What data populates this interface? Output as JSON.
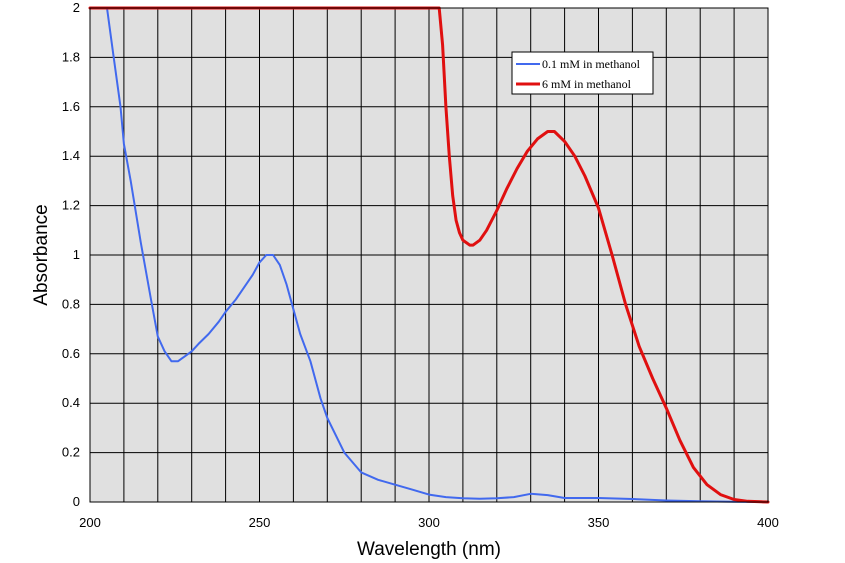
{
  "chart_data": {
    "type": "line",
    "title": "",
    "xlabel": "Wavelength (nm)",
    "ylabel": "Absorbance",
    "xlim": [
      200,
      400
    ],
    "ylim": [
      0,
      2
    ],
    "x_ticks": [
      200,
      250,
      300,
      350,
      400
    ],
    "x_tick_labels": [
      "200",
      "250",
      "300",
      "350",
      "400"
    ],
    "y_ticks": [
      0,
      0.2,
      0.4,
      0.6,
      0.8,
      1,
      1.2,
      1.4,
      1.6,
      1.8,
      2
    ],
    "y_tick_labels": [
      "0",
      "0.2",
      "0.4",
      "0.6",
      "0.8",
      "1",
      "1.2",
      "1.4",
      "1.6",
      "1.8",
      "2"
    ],
    "grid": true,
    "plot_background": "#e0e0e0",
    "legend_position": "top-right",
    "series": [
      {
        "name": "0.1 mM in methanol",
        "color": "#4169ee",
        "x": [
          200,
          205,
          207,
          209,
          210,
          212,
          215,
          218,
          220,
          222,
          224,
          225,
          226,
          227,
          228,
          230,
          232,
          235,
          238,
          240,
          243,
          245,
          248,
          250,
          252,
          254,
          256,
          258,
          260,
          262,
          265,
          268,
          270,
          275,
          280,
          285,
          290,
          295,
          300,
          305,
          310,
          315,
          320,
          325,
          330,
          335,
          340,
          345,
          350,
          360,
          370,
          380,
          390,
          400
        ],
        "y": [
          2,
          2,
          1.8,
          1.6,
          1.45,
          1.3,
          1.05,
          0.82,
          0.67,
          0.61,
          0.57,
          0.57,
          0.57,
          0.58,
          0.59,
          0.61,
          0.64,
          0.68,
          0.73,
          0.77,
          0.82,
          0.86,
          0.92,
          0.97,
          1.0,
          1.0,
          0.96,
          0.88,
          0.78,
          0.68,
          0.57,
          0.42,
          0.34,
          0.2,
          0.12,
          0.09,
          0.07,
          0.05,
          0.03,
          0.02,
          0.015,
          0.013,
          0.015,
          0.02,
          0.033,
          0.028,
          0.016,
          0.016,
          0.016,
          0.012,
          0.006,
          0.003,
          0.001,
          0
        ]
      },
      {
        "name": "6 mM in methanol",
        "color": "#e01010",
        "x": [
          200,
          303,
          304,
          305,
          306,
          307,
          308,
          309,
          310,
          311,
          312,
          313,
          315,
          317,
          320,
          323,
          326,
          329,
          332,
          335,
          337,
          340,
          343,
          346,
          350,
          354,
          358,
          362,
          366,
          370,
          374,
          378,
          382,
          386,
          390,
          394,
          398,
          400
        ],
        "y": [
          2,
          2,
          1.85,
          1.6,
          1.4,
          1.24,
          1.14,
          1.09,
          1.06,
          1.05,
          1.04,
          1.04,
          1.06,
          1.1,
          1.18,
          1.27,
          1.35,
          1.42,
          1.47,
          1.5,
          1.5,
          1.46,
          1.4,
          1.32,
          1.19,
          1.0,
          0.8,
          0.63,
          0.5,
          0.38,
          0.25,
          0.14,
          0.07,
          0.03,
          0.01,
          0.003,
          0.001,
          0
        ]
      }
    ]
  }
}
